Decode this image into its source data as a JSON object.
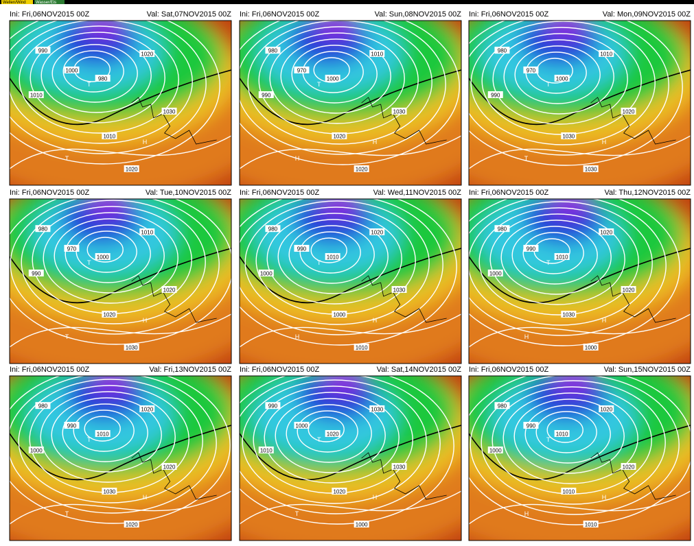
{
  "toolbar": {
    "tabs": [
      "Wellen/Wind",
      "Wasser/Eis"
    ]
  },
  "panels": [
    {
      "init": "Ini: Fri,06NOV2015 00Z",
      "valid": "Val: Sat,07NOV2015 00Z",
      "labels": [
        "990",
        "1000",
        "1010",
        "980",
        "1020",
        "1030",
        "1010",
        "1020"
      ],
      "centers": [
        "T",
        "H",
        "T"
      ]
    },
    {
      "init": "Ini: Fri,06NOV2015 00Z",
      "valid": "Val: Sun,08NOV2015 00Z",
      "labels": [
        "980",
        "970",
        "990",
        "1000",
        "1010",
        "1030",
        "1020",
        "1020"
      ],
      "centers": [
        "T",
        "H",
        "H"
      ]
    },
    {
      "init": "Ini: Fri,06NOV2015 00Z",
      "valid": "Val: Mon,09NOV2015 00Z",
      "labels": [
        "980",
        "970",
        "990",
        "1000",
        "1010",
        "1020",
        "1030",
        "1030"
      ],
      "centers": [
        "T",
        "H",
        "T"
      ]
    },
    {
      "init": "Ini: Fri,06NOV2015 00Z",
      "valid": "Val: Tue,10NOV2015 00Z",
      "labels": [
        "980",
        "970",
        "990",
        "1000",
        "1010",
        "1020",
        "1020",
        "1030"
      ],
      "centers": [
        "T",
        "H",
        "T"
      ]
    },
    {
      "init": "Ini: Fri,06NOV2015 00Z",
      "valid": "Val: Wed,11NOV2015 00Z",
      "labels": [
        "980",
        "990",
        "1000",
        "1010",
        "1020",
        "1030",
        "1000",
        "1010"
      ],
      "centers": [
        "T",
        "H",
        "H"
      ]
    },
    {
      "init": "Ini: Fri,06NOV2015 00Z",
      "valid": "Val: Thu,12NOV2015 00Z",
      "labels": [
        "980",
        "990",
        "1000",
        "1010",
        "1020",
        "1020",
        "1030",
        "1000"
      ],
      "centers": [
        "T",
        "H",
        "H"
      ]
    },
    {
      "init": "Ini: Fri,06NOV2015 00Z",
      "valid": "Val: Fri,13NOV2015 00Z",
      "labels": [
        "980",
        "990",
        "1000",
        "1010",
        "1020",
        "1020",
        "1030",
        "1020"
      ],
      "centers": [
        "T",
        "H",
        "T"
      ]
    },
    {
      "init": "Ini: Fri,06NOV2015 00Z",
      "valid": "Val: Sat,14NOV2015 00Z",
      "labels": [
        "990",
        "1000",
        "1010",
        "1020",
        "1030",
        "1030",
        "1020",
        "1000"
      ],
      "centers": [
        "T",
        "H",
        "T"
      ]
    },
    {
      "init": "Ini: Fri,06NOV2015 00Z",
      "valid": "Val: Sun,15NOV2015 00Z",
      "labels": [
        "980",
        "990",
        "1000",
        "1010",
        "1020",
        "1020",
        "1010",
        "1010"
      ],
      "centers": [
        "T",
        "H",
        "H"
      ]
    }
  ]
}
